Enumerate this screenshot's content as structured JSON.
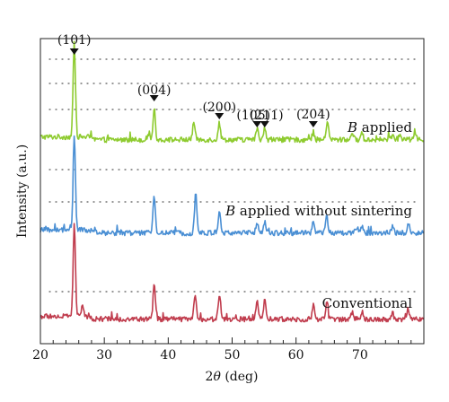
{
  "chart_data": {
    "type": "line",
    "xlabel_prefix": "2",
    "xlabel_symbol": "θ",
    "xlabel_suffix": " (deg)",
    "ylabel": "Intensity (a.u.)",
    "xlim": [
      20,
      80
    ],
    "xticks": [
      20,
      30,
      40,
      50,
      60,
      70
    ],
    "grid": "dotted horizontal reference lines per series",
    "legend": "none (series labelled inline, right side)",
    "peaks": [
      {
        "label": "(101)",
        "x": 25.3
      },
      {
        "label": "(004)",
        "x": 37.8
      },
      {
        "label": "(200)",
        "x": 48.0
      },
      {
        "label": "(105)",
        "x": 53.9
      },
      {
        "label": "(211)",
        "x": 55.1
      },
      {
        "label": "(204)",
        "x": 62.7
      }
    ],
    "series": [
      {
        "name_italic": "B",
        "name_rest": " applied",
        "color": "#8ecb2f",
        "baseline": 0,
        "peaks": [
          [
            25.3,
            100
          ],
          [
            36.9,
            6
          ],
          [
            37.8,
            33
          ],
          [
            44.0,
            19
          ],
          [
            48.0,
            18
          ],
          [
            53.9,
            12
          ],
          [
            55.1,
            14
          ],
          [
            62.7,
            8
          ],
          [
            64.9,
            20
          ],
          [
            68.8,
            7
          ],
          [
            70.3,
            7
          ],
          [
            75.1,
            5
          ],
          [
            76.2,
            4
          ],
          [
            78.6,
            9
          ]
        ]
      },
      {
        "name_italic": "B",
        "name_rest": " applied without sintering",
        "color": "#4a8fd4",
        "baseline": 0,
        "peaks": [
          [
            25.3,
            100
          ],
          [
            37.8,
            39
          ],
          [
            44.3,
            43
          ],
          [
            48.0,
            22
          ],
          [
            53.9,
            12
          ],
          [
            55.1,
            12
          ],
          [
            62.7,
            10
          ],
          [
            64.8,
            18
          ],
          [
            69.5,
            6
          ],
          [
            70.3,
            8
          ],
          [
            75.1,
            6
          ],
          [
            77.6,
            10
          ]
        ]
      },
      {
        "name": "Conventional",
        "color": "#c03c4d",
        "baseline": 0,
        "peaks": [
          [
            25.3,
            100
          ],
          [
            26.6,
            12
          ],
          [
            37.8,
            38
          ],
          [
            44.2,
            25
          ],
          [
            48.0,
            27
          ],
          [
            53.9,
            17
          ],
          [
            55.1,
            21
          ],
          [
            62.7,
            15
          ],
          [
            64.8,
            18
          ],
          [
            68.8,
            8
          ],
          [
            70.3,
            8
          ],
          [
            75.1,
            6
          ],
          [
            77.5,
            11
          ]
        ]
      }
    ]
  }
}
